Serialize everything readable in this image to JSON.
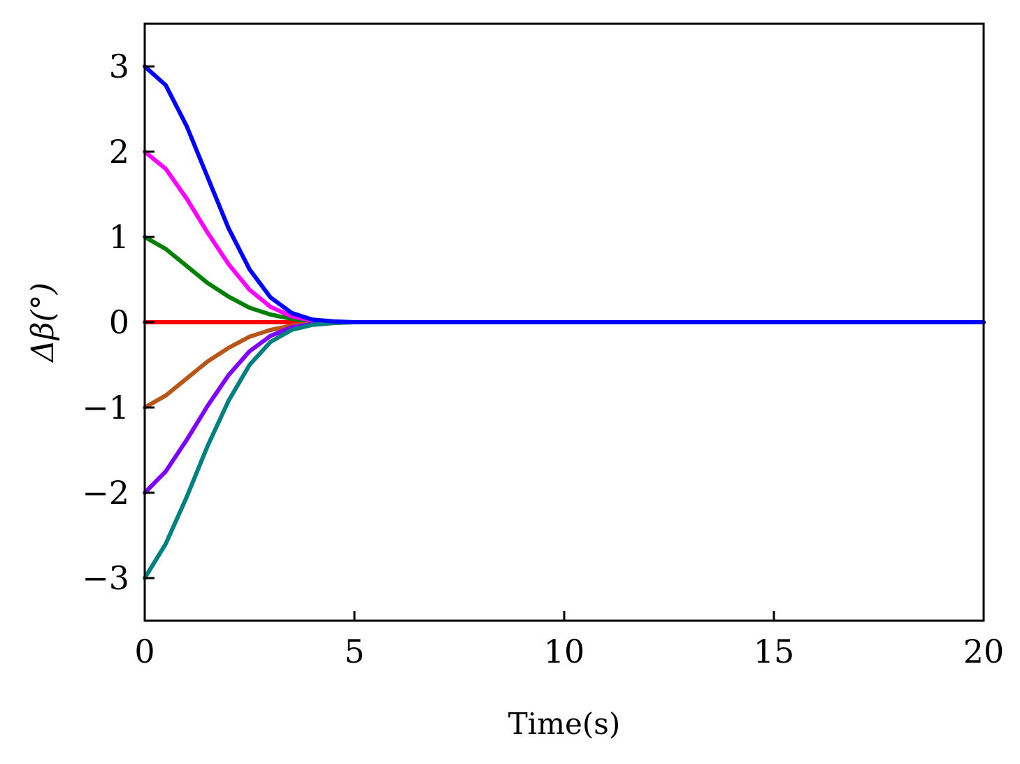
{
  "chart_data": {
    "type": "line",
    "title": "",
    "xlabel": "Time(s)",
    "ylabel": "Δβ(°)",
    "xlim": [
      0,
      20
    ],
    "ylim": [
      -3.5,
      3.5
    ],
    "xticks": [
      0,
      5,
      10,
      15,
      20
    ],
    "xtick_labels": [
      "0",
      "5",
      "10",
      "15",
      "20"
    ],
    "yticks": [
      3,
      2,
      1,
      0,
      -1,
      -2,
      -3
    ],
    "ytick_labels": [
      "3",
      "2",
      "1",
      "0",
      "−1",
      "−2",
      "−3"
    ],
    "grid": false,
    "legend": "none",
    "x": [
      0,
      0.5,
      1,
      1.5,
      2,
      2.5,
      3,
      3.5,
      4,
      4.5,
      5,
      6,
      7,
      8,
      10,
      12,
      14,
      16,
      18,
      20
    ],
    "series": [
      {
        "color": "#ff0000",
        "values": [
          0,
          0,
          0,
          0,
          0,
          0,
          0,
          0,
          0,
          0,
          0,
          0,
          0,
          0,
          0,
          0,
          0,
          0,
          0,
          0
        ]
      },
      {
        "color": "#008000",
        "values": [
          1,
          0.86,
          0.66,
          0.46,
          0.3,
          0.17,
          0.09,
          0.04,
          0.01,
          0,
          0,
          0,
          0,
          0,
          0,
          0,
          0,
          0,
          0,
          0
        ]
      },
      {
        "color": "#b8561a",
        "values": [
          -1,
          -0.86,
          -0.66,
          -0.46,
          -0.3,
          -0.17,
          -0.09,
          -0.04,
          -0.01,
          0,
          0,
          0,
          0,
          0,
          0,
          0,
          0,
          0,
          0,
          0
        ]
      },
      {
        "color": "#ff00ff",
        "values": [
          2,
          1.8,
          1.45,
          1.05,
          0.68,
          0.38,
          0.18,
          0.07,
          0.02,
          0,
          0,
          0,
          0,
          0,
          0,
          0,
          0,
          0,
          0,
          0
        ]
      },
      {
        "color": "#8000ff",
        "values": [
          -2,
          -1.75,
          -1.38,
          -0.98,
          -0.62,
          -0.34,
          -0.16,
          -0.06,
          -0.02,
          0,
          0,
          0,
          0,
          0,
          0,
          0,
          0,
          0,
          0,
          0
        ]
      },
      {
        "color": "#008080",
        "values": [
          -3,
          -2.6,
          -2.05,
          -1.45,
          -0.92,
          -0.5,
          -0.23,
          -0.09,
          -0.03,
          -0.01,
          0,
          0,
          0,
          0,
          0,
          0,
          0,
          0,
          0,
          0
        ]
      },
      {
        "color": "#0000ff",
        "values": [
          3,
          2.78,
          2.3,
          1.7,
          1.1,
          0.62,
          0.29,
          0.11,
          0.03,
          0.01,
          0,
          0,
          0,
          0,
          0,
          0,
          0,
          0,
          0,
          0
        ]
      }
    ]
  }
}
